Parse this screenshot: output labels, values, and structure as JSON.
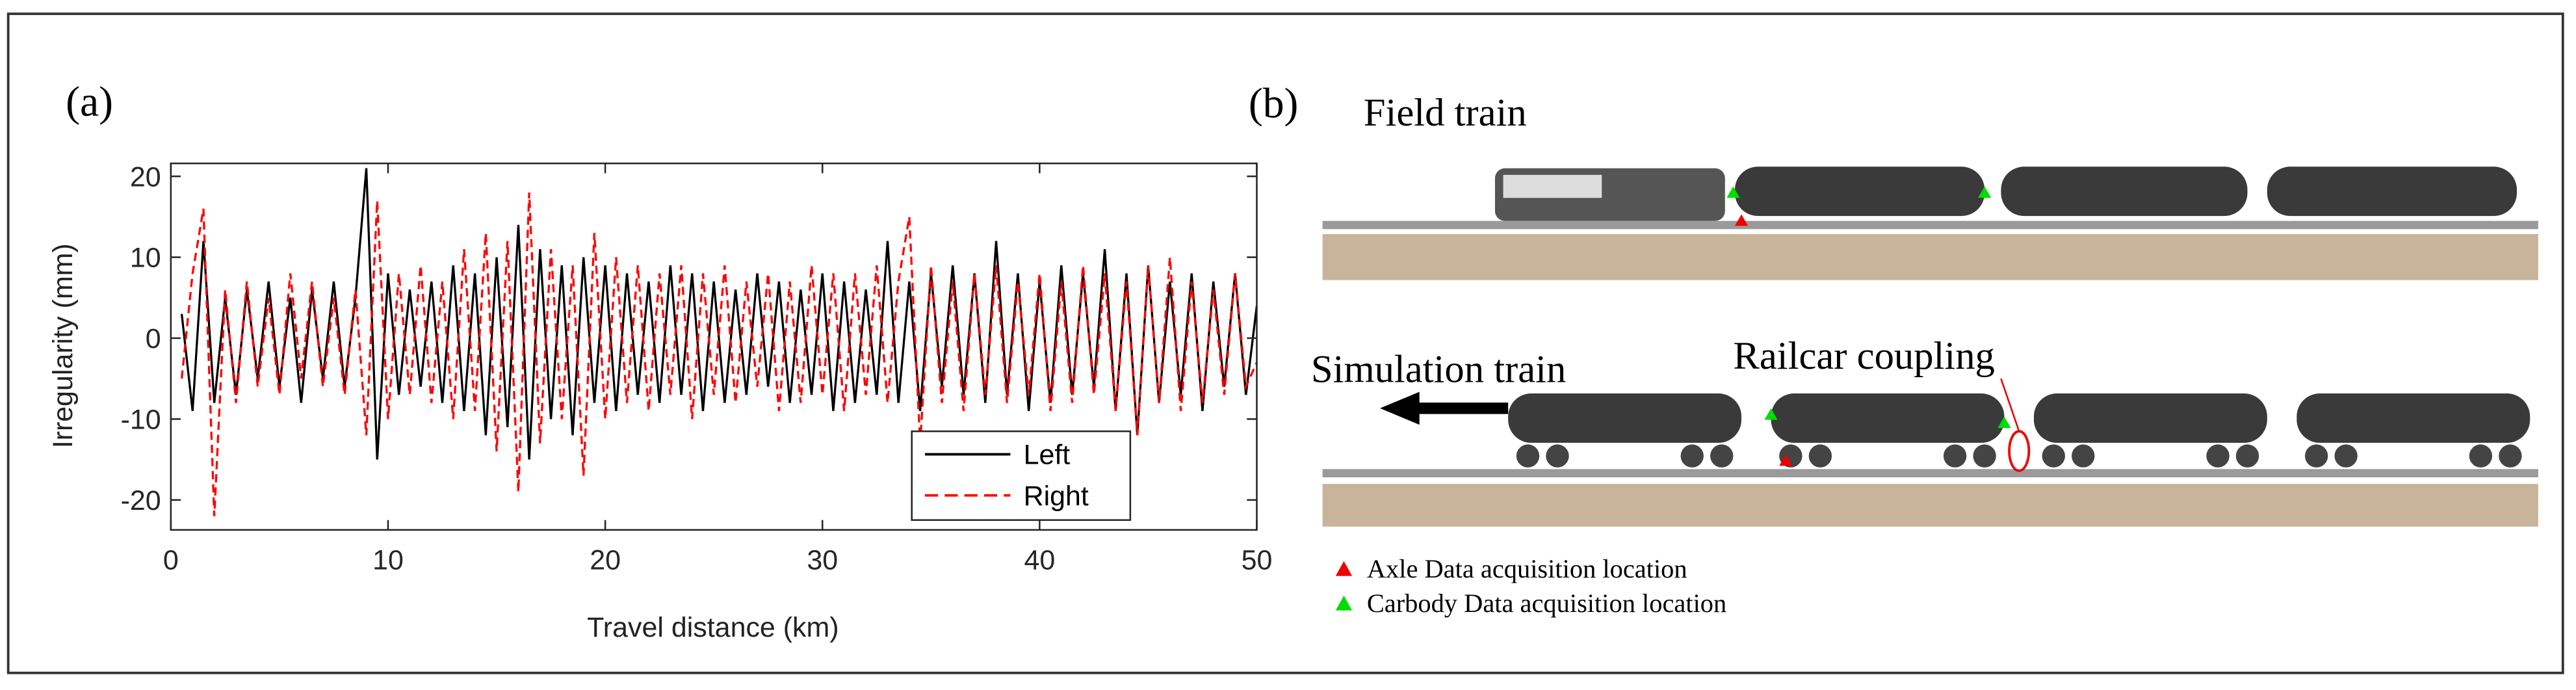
{
  "chart_data": {
    "type": "line",
    "panel_label": "(a)",
    "xlabel": "Travel distance (km)",
    "ylabel": "Irregularity (mm)",
    "x": [
      0.5,
      1,
      1.5,
      2,
      2.5,
      3,
      3.5,
      4,
      4.5,
      5,
      5.5,
      6,
      6.5,
      7,
      7.5,
      8,
      8.5,
      9,
      9.5,
      10,
      10.5,
      11,
      11.5,
      12,
      12.5,
      13,
      13.5,
      14,
      14.5,
      15,
      15.5,
      16,
      16.5,
      17,
      17.5,
      18,
      18.5,
      19,
      19.5,
      20,
      20.5,
      21,
      21.5,
      22,
      22.5,
      23,
      23.5,
      24,
      24.5,
      25,
      25.5,
      26,
      26.5,
      27,
      27.5,
      28,
      28.5,
      29,
      29.5,
      30,
      30.5,
      31,
      31.5,
      32,
      32.5,
      33,
      33.5,
      34,
      34.5,
      35,
      35.5,
      36,
      36.5,
      37,
      37.5,
      38,
      38.5,
      39,
      39.5,
      40,
      40.5,
      41,
      41.5,
      42,
      42.5,
      43,
      43.5,
      44,
      44.5,
      45,
      45.5,
      46,
      46.5,
      47,
      47.5,
      48,
      48.5,
      49,
      49.5,
      50
    ],
    "series": [
      {
        "name": "Left",
        "color": "#000000",
        "dash": false,
        "values": [
          3,
          -9,
          12,
          -8,
          5,
          -7,
          6,
          -5,
          7,
          -6,
          5,
          -8,
          6,
          -5,
          7,
          -6,
          5,
          21,
          -15,
          8,
          -7,
          6,
          -6,
          7,
          -8,
          9,
          -9,
          8,
          -12,
          10,
          -11,
          14,
          -15,
          11,
          -10,
          9,
          -12,
          10,
          -8,
          9,
          -9,
          8,
          -7,
          7,
          -8,
          9,
          -7,
          8,
          -9,
          7,
          -8,
          6,
          -7,
          8,
          -6,
          7,
          -8,
          6,
          -7,
          8,
          -9,
          7,
          -8,
          6,
          -7,
          12,
          -8,
          7,
          -9,
          8,
          -6,
          9,
          -7,
          8,
          -8,
          12,
          -7,
          8,
          -9,
          7,
          -8,
          9,
          -7,
          8,
          -6,
          11,
          -9,
          8,
          -12,
          9,
          -8,
          7,
          -7,
          8,
          -9,
          7,
          -6,
          8,
          -7,
          4
        ]
      },
      {
        "name": "Right",
        "color": "#ff0000",
        "dash": true,
        "values": [
          -5,
          8,
          16,
          -22,
          6,
          -8,
          7,
          -6,
          5,
          -7,
          8,
          -5,
          7,
          -6,
          5,
          -7,
          6,
          -12,
          17,
          -10,
          8,
          -7,
          9,
          -8,
          7,
          -10,
          11,
          -9,
          13,
          -14,
          12,
          -19,
          18,
          -13,
          11,
          -10,
          9,
          -17,
          13,
          -10,
          10,
          -8,
          9,
          -9,
          8,
          -7,
          9,
          -10,
          8,
          -7,
          9,
          -8,
          7,
          -6,
          8,
          -9,
          7,
          -8,
          9,
          -7,
          8,
          -9,
          8,
          -7,
          9,
          -8,
          7,
          15,
          -13,
          9,
          -8,
          7,
          -9,
          8,
          -7,
          9,
          -8,
          7,
          -7,
          8,
          -9,
          7,
          -8,
          9,
          -7,
          8,
          -9,
          7,
          -12,
          9,
          -8,
          10,
          -9,
          7,
          -8,
          6,
          -7,
          8,
          -6,
          -3
        ]
      }
    ],
    "xlim": [
      0,
      50
    ],
    "ylim": [
      -23.7,
      21.6
    ],
    "xticks": [
      0,
      10,
      20,
      30,
      40,
      50
    ],
    "yticks": [
      -20,
      -10,
      0,
      10,
      20
    ],
    "legend": "lower right",
    "grid": false
  },
  "diagram": {
    "panel_label": "(b)",
    "field_train": "Field train",
    "simulation_train": "Simulation train",
    "railcar_coupling": "Railcar coupling",
    "legend": [
      "Axle Data acquisition location",
      "Carbody Data acquisition location"
    ]
  }
}
